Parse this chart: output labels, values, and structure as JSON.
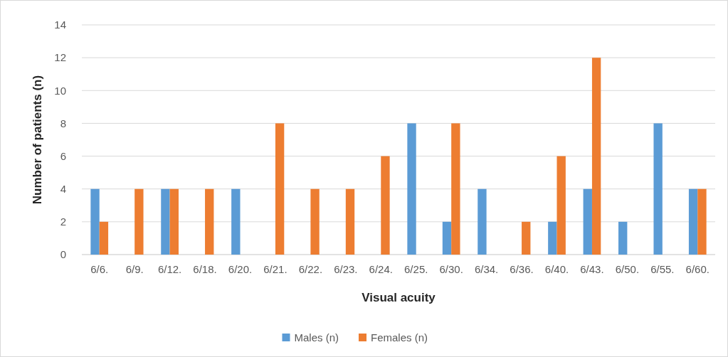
{
  "chart_data": {
    "type": "bar",
    "xlabel": "Visual acuity",
    "ylabel": "Number of patients (n)",
    "categories": [
      "6/6.",
      "6/9.",
      "6/12.",
      "6/18.",
      "6/20.",
      "6/21.",
      "6/22.",
      "6/23.",
      "6/24.",
      "6/25.",
      "6/30.",
      "6/34.",
      "6/36.",
      "6/40.",
      "6/43.",
      "6/50.",
      "6/55.",
      "6/60."
    ],
    "series": [
      {
        "name": "Males (n)",
        "color": "#5b9bd5",
        "values": [
          4,
          0,
          4,
          0,
          4,
          0,
          0,
          0,
          0,
          8,
          2,
          4,
          0,
          2,
          4,
          2,
          8,
          4
        ]
      },
      {
        "name": "Females (n)",
        "color": "#ed7d31",
        "values": [
          2,
          4,
          4,
          4,
          0,
          8,
          4,
          4,
          6,
          0,
          8,
          0,
          2,
          6,
          12,
          0,
          0,
          4
        ]
      }
    ],
    "ylim": [
      0,
      14
    ],
    "yticks": [
      0,
      2,
      4,
      6,
      8,
      10,
      12,
      14
    ],
    "grid": "y",
    "legend": "bottom"
  }
}
